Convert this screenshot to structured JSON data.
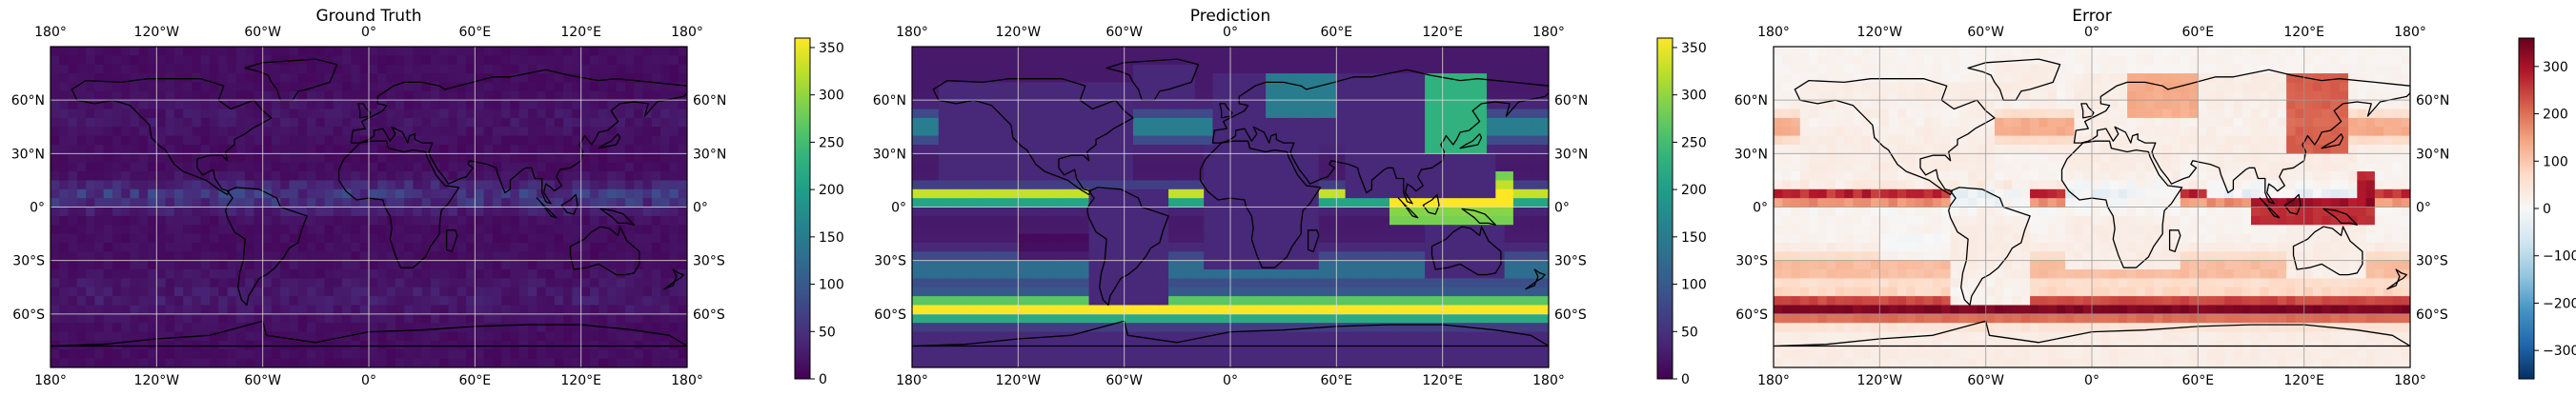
{
  "figure": {
    "panels": [
      {
        "title": "Ground Truth",
        "field": "ground_truth",
        "colormap": "viridis",
        "colorbar": {
          "range": [
            0,
            360
          ],
          "ticks": [
            "0",
            "50",
            "100",
            "150",
            "200",
            "250",
            "300",
            "350"
          ]
        }
      },
      {
        "title": "Prediction",
        "field": "prediction",
        "colormap": "viridis",
        "colorbar": {
          "range": [
            0,
            360
          ],
          "ticks": [
            "0",
            "50",
            "100",
            "150",
            "200",
            "250",
            "300",
            "350"
          ]
        }
      },
      {
        "title": "Error",
        "field": "error",
        "colormap": "RdBu_r",
        "colorbar": {
          "range": [
            -360,
            360
          ],
          "ticks": [
            "−300",
            "−200",
            "−100",
            "0",
            "100",
            "200",
            "300"
          ]
        }
      }
    ],
    "lon_ticks": [
      "180°",
      "120°W",
      "60°W",
      "0°",
      "60°E",
      "120°E",
      "180°"
    ],
    "lat_ticks": [
      "60°N",
      "30°N",
      "0°",
      "30°S",
      "60°S"
    ]
  }
}
